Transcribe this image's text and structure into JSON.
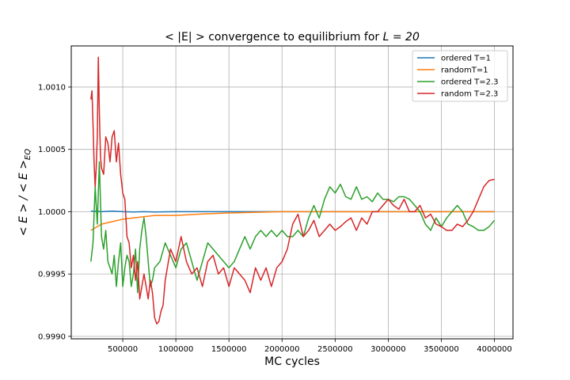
{
  "chart_data": {
    "type": "line",
    "title_prefix": "< |E| > ",
    "title_suffix": " convergence to equilibrium for ",
    "title_math": "L = 20",
    "xlabel": "MC cycles",
    "ylabel": "< E > / < E >",
    "ylabel_sub": "EQ",
    "xlim": [
      15000,
      4175000
    ],
    "ylim": [
      0.99898,
      1.00133
    ],
    "x_ticks": [
      500000,
      1000000,
      1500000,
      2000000,
      2500000,
      3000000,
      3500000,
      4000000
    ],
    "x_tick_labels": [
      "500000",
      "1000000",
      "1500000",
      "2000000",
      "2500000",
      "3000000",
      "3500000",
      "4000000"
    ],
    "y_ticks": [
      0.999,
      0.9995,
      1.0,
      1.0005,
      1.001
    ],
    "y_tick_labels": [
      "0.9990",
      "0.9995",
      "1.0000",
      "1.0005",
      "1.0010"
    ],
    "grid": true,
    "legend_position": "upper right",
    "series": [
      {
        "name": "ordered T=1",
        "color": "#1f77b4",
        "x": [
          200000,
          300000,
          400000,
          500000,
          600000,
          700000,
          800000,
          1000000,
          1500000,
          2000000,
          3000000,
          4000000
        ],
        "y": [
          1.000005,
          1.0,
          1.000005,
          1.0,
          0.999998,
          1.0,
          0.999998,
          1.0,
          1.0,
          1.0,
          1.0,
          1.0
        ]
      },
      {
        "name": "randomT=1",
        "color": "#ff7f0e",
        "x": [
          200000,
          300000,
          400000,
          500000,
          600000,
          700000,
          800000,
          1000000,
          1200000,
          1500000,
          2000000,
          2500000,
          3000000,
          3500000,
          4000000
        ],
        "y": [
          0.99985,
          0.9999,
          0.99992,
          0.99994,
          0.99995,
          0.99996,
          0.99997,
          0.99997,
          0.99998,
          0.99999,
          1.0,
          1.0,
          1.0,
          1.0,
          1.0
        ]
      },
      {
        "name": "ordered T=2.3",
        "color": "#2ca02c",
        "x": [
          200000,
          220000,
          240000,
          260000,
          280000,
          300000,
          320000,
          340000,
          360000,
          380000,
          400000,
          420000,
          440000,
          460000,
          480000,
          500000,
          520000,
          540000,
          560000,
          580000,
          600000,
          620000,
          640000,
          660000,
          680000,
          700000,
          720000,
          740000,
          760000,
          780000,
          800000,
          850000,
          900000,
          950000,
          1000000,
          1050000,
          1100000,
          1150000,
          1200000,
          1250000,
          1300000,
          1350000,
          1400000,
          1450000,
          1500000,
          1550000,
          1600000,
          1650000,
          1700000,
          1750000,
          1800000,
          1850000,
          1900000,
          1950000,
          2000000,
          2050000,
          2100000,
          2150000,
          2200000,
          2250000,
          2300000,
          2350000,
          2400000,
          2450000,
          2500000,
          2550000,
          2600000,
          2650000,
          2700000,
          2750000,
          2800000,
          2850000,
          2900000,
          2950000,
          3000000,
          3050000,
          3100000,
          3150000,
          3200000,
          3250000,
          3300000,
          3350000,
          3400000,
          3450000,
          3500000,
          3550000,
          3600000,
          3650000,
          3700000,
          3750000,
          3800000,
          3850000,
          3900000,
          3950000,
          4000000
        ],
        "y": [
          0.9996,
          0.99975,
          1.0002,
          0.9999,
          1.0004,
          0.9998,
          0.9997,
          0.99985,
          0.9996,
          0.99955,
          0.9995,
          0.99965,
          0.9994,
          0.9996,
          0.99975,
          0.9994,
          0.99955,
          0.99965,
          0.9996,
          0.9994,
          0.9995,
          0.9997,
          0.99935,
          0.9997,
          0.99985,
          0.99995,
          0.9998,
          0.9996,
          0.9994,
          0.99945,
          0.99955,
          0.9996,
          0.99975,
          0.99965,
          0.99955,
          0.9997,
          0.99975,
          0.9996,
          0.99945,
          0.9996,
          0.99975,
          0.9997,
          0.99965,
          0.9996,
          0.99955,
          0.9996,
          0.9997,
          0.9998,
          0.9997,
          0.9998,
          0.99985,
          0.9998,
          0.99985,
          0.9998,
          0.99985,
          0.9998,
          0.9998,
          0.99985,
          0.9998,
          0.99995,
          1.00005,
          0.99995,
          1.0001,
          1.0002,
          1.00015,
          1.00022,
          1.00012,
          1.0001,
          1.0002,
          1.0001,
          1.00012,
          1.00008,
          1.00015,
          1.0001,
          1.0001,
          1.00008,
          1.00012,
          1.00012,
          1.0001,
          1.00005,
          1.0,
          0.9999,
          0.99985,
          0.99995,
          0.99988,
          0.99995,
          1.0,
          1.00005,
          1.0,
          0.9999,
          0.99988,
          0.99985,
          0.99985,
          0.99988,
          0.99993
        ]
      },
      {
        "name": "random T=2.3",
        "color": "#d62728",
        "x": [
          200000,
          210000,
          220000,
          230000,
          240000,
          250000,
          260000,
          270000,
          280000,
          290000,
          300000,
          320000,
          340000,
          360000,
          380000,
          400000,
          420000,
          440000,
          460000,
          480000,
          500000,
          520000,
          540000,
          560000,
          580000,
          600000,
          620000,
          640000,
          660000,
          680000,
          700000,
          720000,
          740000,
          760000,
          780000,
          800000,
          820000,
          840000,
          860000,
          880000,
          900000,
          950000,
          1000000,
          1050000,
          1100000,
          1150000,
          1200000,
          1250000,
          1300000,
          1350000,
          1400000,
          1450000,
          1500000,
          1550000,
          1600000,
          1650000,
          1700000,
          1750000,
          1800000,
          1850000,
          1900000,
          1950000,
          2000000,
          2050000,
          2100000,
          2150000,
          2200000,
          2250000,
          2300000,
          2350000,
          2400000,
          2450000,
          2500000,
          2550000,
          2600000,
          2650000,
          2700000,
          2750000,
          2800000,
          2850000,
          2900000,
          2950000,
          3000000,
          3050000,
          3100000,
          3150000,
          3200000,
          3250000,
          3300000,
          3350000,
          3400000,
          3450000,
          3500000,
          3550000,
          3600000,
          3650000,
          3700000,
          3750000,
          3800000,
          3850000,
          3900000,
          3950000,
          4000000
        ],
        "y": [
          1.0009,
          1.00097,
          1.0007,
          1.0004,
          1.0002,
          1.00035,
          1.0006,
          1.00124,
          1.0008,
          1.00045,
          1.00035,
          1.0003,
          1.0006,
          1.00055,
          1.0004,
          1.0006,
          1.00065,
          1.0004,
          1.00055,
          1.0003,
          1.00015,
          1.0001,
          0.9998,
          0.99975,
          0.99955,
          0.99965,
          0.99945,
          0.9996,
          0.9993,
          0.9994,
          0.9995,
          0.9994,
          0.9993,
          0.99945,
          0.99935,
          0.99915,
          0.9991,
          0.99912,
          0.9992,
          0.99925,
          0.99945,
          0.9997,
          0.9996,
          0.9998,
          0.9996,
          0.9995,
          0.99955,
          0.9994,
          0.9996,
          0.99965,
          0.9995,
          0.99955,
          0.9994,
          0.99955,
          0.9995,
          0.99945,
          0.99935,
          0.99955,
          0.99945,
          0.99955,
          0.9994,
          0.99955,
          0.9996,
          0.9997,
          0.9999,
          0.99998,
          0.9998,
          0.99985,
          0.99993,
          0.9998,
          0.99985,
          0.9999,
          0.99985,
          0.99988,
          0.99992,
          0.99995,
          0.99985,
          0.99995,
          0.9999,
          1.0,
          1.0,
          1.00005,
          1.0001,
          1.00005,
          1.00002,
          1.0001,
          1.0,
          1.0,
          1.00005,
          0.99995,
          0.99998,
          0.9999,
          0.99988,
          0.99985,
          0.99985,
          0.9999,
          0.99988,
          0.99993,
          1.0,
          1.0001,
          1.0002,
          1.00025,
          1.00026
        ]
      }
    ]
  }
}
